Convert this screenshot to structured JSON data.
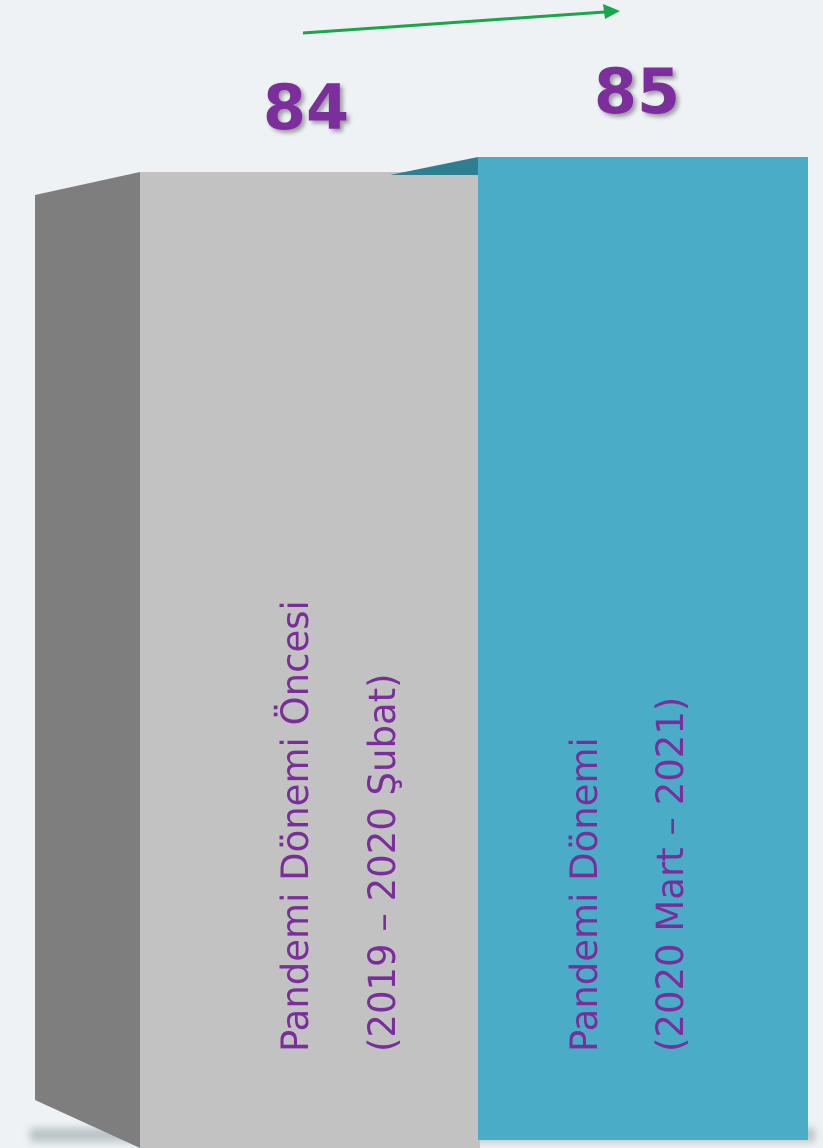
{
  "chart_data": {
    "type": "bar",
    "categories": [
      [
        "Pandemi Dönemi Öncesi",
        "(2019 – 2020 Şubat)"
      ],
      [
        "Pandemi Dönemi",
        "(2020 Mart – 2021)"
      ]
    ],
    "values": [
      84,
      85
    ],
    "value_labels": [
      "84",
      "85"
    ],
    "trend": "up",
    "colors": {
      "bar1_front": "#c2c2c2",
      "bar1_side": "#7e7e7e",
      "bar2_front": "#4bacc8",
      "bar2_top": "#2f7f93",
      "label": "#7b2d9c",
      "arrow": "#1aa64b",
      "background": "#eef2f4"
    }
  }
}
